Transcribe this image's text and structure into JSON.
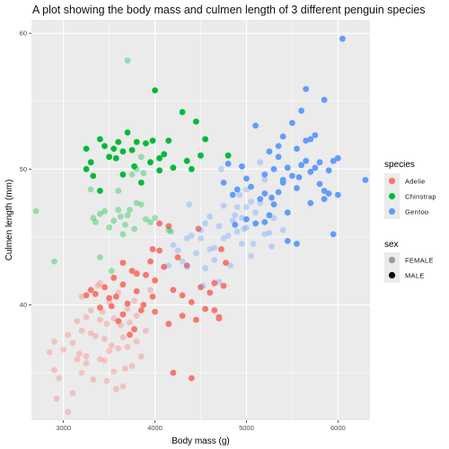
{
  "chart_data": {
    "type": "scatter",
    "title": "A plot showing the body mass and culmen length of 3 different penguin species",
    "xlabel": "Body mass (g)",
    "ylabel": "Culmen length (mm)",
    "xlim": [
      2650,
      6350
    ],
    "ylim": [
      31.5,
      61.0
    ],
    "xticks": [
      3000,
      4000,
      5000,
      6000
    ],
    "yticks": [
      40,
      50,
      60
    ],
    "grid": true,
    "legend_placement": "right",
    "legends": {
      "species": {
        "title": "species",
        "items": [
          {
            "label": "Adelie",
            "color": "#F8766D"
          },
          {
            "label": "Chinstrap",
            "color": "#00BA38"
          },
          {
            "label": "Gentoo",
            "color": "#619CFF"
          }
        ]
      },
      "sex": {
        "title": "sex",
        "items": [
          {
            "label": "FEMALE",
            "alpha": 0.35
          },
          {
            "label": "MALE",
            "alpha": 1.0
          }
        ]
      }
    },
    "series": [
      {
        "species": "Adelie",
        "sex": "FEMALE",
        "points": [
          [
            2850,
            36.5
          ],
          [
            2900,
            37.3
          ],
          [
            2900,
            35.2
          ],
          [
            2925,
            33.1
          ],
          [
            2950,
            34.6
          ],
          [
            3000,
            36.7
          ],
          [
            3050,
            37.8
          ],
          [
            3050,
            32.1
          ],
          [
            3100,
            37.2
          ],
          [
            3150,
            38.8
          ],
          [
            3175,
            36.4
          ],
          [
            3200,
            40.6
          ],
          [
            3200,
            38.1
          ],
          [
            3250,
            35.7
          ],
          [
            3250,
            36.2
          ],
          [
            3300,
            39.6
          ],
          [
            3300,
            37.9
          ],
          [
            3325,
            34.5
          ],
          [
            3350,
            37.7
          ],
          [
            3400,
            38.9
          ],
          [
            3400,
            36.0
          ],
          [
            3425,
            39.5
          ],
          [
            3450,
            35.9
          ],
          [
            3450,
            37.5
          ],
          [
            3475,
            38.6
          ],
          [
            3500,
            40.2
          ],
          [
            3500,
            36.6
          ],
          [
            3525,
            37.0
          ],
          [
            3550,
            35.1
          ],
          [
            3550,
            39.0
          ],
          [
            3600,
            36.8
          ],
          [
            3600,
            40.9
          ],
          [
            3625,
            38.5
          ],
          [
            3650,
            37.6
          ],
          [
            3650,
            34.0
          ],
          [
            3700,
            39.7
          ],
          [
            3700,
            36.9
          ],
          [
            3725,
            38.7
          ],
          [
            3750,
            35.5
          ],
          [
            3775,
            40.3
          ],
          [
            3800,
            37.3
          ],
          [
            3800,
            39.2
          ],
          [
            3850,
            36.2
          ],
          [
            3900,
            38.1
          ],
          [
            3950,
            41.1
          ],
          [
            3100,
            33.5
          ],
          [
            3200,
            35.0
          ],
          [
            3375,
            41.4
          ],
          [
            3575,
            33.8
          ],
          [
            3675,
            35.3
          ],
          [
            3400,
            41.6
          ],
          [
            3250,
            39.1
          ],
          [
            3150,
            36.0
          ],
          [
            3475,
            34.4
          ]
        ]
      },
      {
        "species": "Adelie",
        "sex": "MALE",
        "points": [
          [
            3250,
            40.7
          ],
          [
            3300,
            41.1
          ],
          [
            3350,
            40.8
          ],
          [
            3400,
            39.8
          ],
          [
            3450,
            41.3
          ],
          [
            3500,
            40.5
          ],
          [
            3525,
            39.9
          ],
          [
            3550,
            42.0
          ],
          [
            3600,
            38.8
          ],
          [
            3650,
            39.3
          ],
          [
            3650,
            41.5
          ],
          [
            3700,
            40.1
          ],
          [
            3750,
            42.5
          ],
          [
            3775,
            38.2
          ],
          [
            3800,
            41.0
          ],
          [
            3850,
            39.6
          ],
          [
            3900,
            42.2
          ],
          [
            3950,
            43.2
          ],
          [
            3975,
            40.6
          ],
          [
            4000,
            41.8
          ],
          [
            4000,
            39.5
          ],
          [
            4050,
            44.0
          ],
          [
            4100,
            42.8
          ],
          [
            4150,
            38.6
          ],
          [
            4200,
            41.1
          ],
          [
            4250,
            43.5
          ],
          [
            4300,
            40.7
          ],
          [
            4300,
            39.2
          ],
          [
            4350,
            42.9
          ],
          [
            4400,
            40.2
          ],
          [
            4450,
            38.9
          ],
          [
            4475,
            45.6
          ],
          [
            4500,
            41.3
          ],
          [
            4550,
            39.7
          ],
          [
            4600,
            40.9
          ],
          [
            4650,
            41.6
          ],
          [
            4700,
            39.0
          ],
          [
            4725,
            44.1
          ],
          [
            4750,
            41.4
          ],
          [
            4775,
            43.1
          ],
          [
            3650,
            43.1
          ],
          [
            3800,
            42.3
          ],
          [
            3875,
            40.0
          ],
          [
            4050,
            46.0
          ],
          [
            4150,
            45.8
          ],
          [
            4200,
            35.0
          ],
          [
            4400,
            34.6
          ],
          [
            4650,
            39.6
          ],
          [
            4700,
            39.1
          ],
          [
            3975,
            44.1
          ],
          [
            3725,
            37.8
          ],
          [
            3575,
            40.6
          ]
        ]
      },
      {
        "species": "Chinstrap",
        "sex": "FEMALE",
        "points": [
          [
            2700,
            46.9
          ],
          [
            2900,
            43.2
          ],
          [
            3325,
            46.4
          ],
          [
            3350,
            46.1
          ],
          [
            3400,
            46.7
          ],
          [
            3400,
            43.5
          ],
          [
            3450,
            46.9
          ],
          [
            3500,
            45.7
          ],
          [
            3525,
            42.5
          ],
          [
            3550,
            46.2
          ],
          [
            3600,
            47.0
          ],
          [
            3625,
            46.5
          ],
          [
            3650,
            45.2
          ],
          [
            3675,
            45.9
          ],
          [
            3700,
            46.6
          ],
          [
            3700,
            58.0
          ],
          [
            3725,
            47.0
          ],
          [
            3750,
            49.6
          ],
          [
            3775,
            45.6
          ],
          [
            3800,
            47.5
          ],
          [
            3850,
            47.4
          ],
          [
            3875,
            49.7
          ],
          [
            3900,
            46.3
          ],
          [
            3950,
            46.1
          ],
          [
            4000,
            46.4
          ],
          [
            4150,
            45.5
          ],
          [
            4175,
            45.4
          ],
          [
            3600,
            48.4
          ],
          [
            3300,
            48.5
          ],
          [
            3800,
            50.0
          ],
          [
            3850,
            50.9
          ]
        ]
      },
      {
        "species": "Chinstrap",
        "sex": "MALE",
        "points": [
          [
            3250,
            50.0
          ],
          [
            3250,
            51.5
          ],
          [
            3300,
            50.5
          ],
          [
            3325,
            49.5
          ],
          [
            3400,
            52.2
          ],
          [
            3450,
            51.7
          ],
          [
            3500,
            50.9
          ],
          [
            3550,
            51.5
          ],
          [
            3575,
            50.8
          ],
          [
            3600,
            52.0
          ],
          [
            3650,
            51.3
          ],
          [
            3650,
            49.6
          ],
          [
            3700,
            52.7
          ],
          [
            3750,
            51.4
          ],
          [
            3775,
            50.2
          ],
          [
            3800,
            52.0
          ],
          [
            3850,
            49.0
          ],
          [
            3900,
            51.9
          ],
          [
            3950,
            50.5
          ],
          [
            3975,
            52.1
          ],
          [
            4000,
            55.8
          ],
          [
            4050,
            50.8
          ],
          [
            4100,
            51.1
          ],
          [
            4150,
            52.1
          ],
          [
            4200,
            50.1
          ],
          [
            4300,
            54.2
          ],
          [
            4350,
            50.6
          ],
          [
            4400,
            50.0
          ],
          [
            4450,
            53.5
          ],
          [
            4500,
            51.0
          ],
          [
            4550,
            52.2
          ],
          [
            4800,
            51.0
          ],
          [
            3400,
            48.4
          ],
          [
            4050,
            49.9
          ]
        ]
      },
      {
        "species": "Gentoo",
        "sex": "FEMALE",
        "points": [
          [
            4150,
            42.9
          ],
          [
            4200,
            44.4
          ],
          [
            4250,
            44.0
          ],
          [
            4300,
            43.2
          ],
          [
            4350,
            42.8
          ],
          [
            4400,
            45.1
          ],
          [
            4450,
            43.8
          ],
          [
            4500,
            45.5
          ],
          [
            4500,
            44.9
          ],
          [
            4550,
            42.7
          ],
          [
            4600,
            44.1
          ],
          [
            4600,
            46.5
          ],
          [
            4650,
            43.3
          ],
          [
            4700,
            45.8
          ],
          [
            4750,
            44.9
          ],
          [
            4750,
            47.3
          ],
          [
            4800,
            45.1
          ],
          [
            4825,
            42.9
          ],
          [
            4850,
            46.2
          ],
          [
            4875,
            46.6
          ],
          [
            4900,
            45.4
          ],
          [
            4900,
            47.2
          ],
          [
            4950,
            46.4
          ],
          [
            4950,
            44.5
          ],
          [
            5000,
            45.7
          ],
          [
            5000,
            48.5
          ],
          [
            5050,
            47.6
          ],
          [
            5050,
            43.6
          ],
          [
            5100,
            46.8
          ],
          [
            5150,
            47.5
          ],
          [
            5200,
            45.2
          ],
          [
            5200,
            49.2
          ],
          [
            5250,
            45.3
          ],
          [
            5300,
            46.4
          ],
          [
            5400,
            45.5
          ],
          [
            5150,
            50.5
          ],
          [
            5000,
            47.2
          ],
          [
            4725,
            50.0
          ],
          [
            4550,
            46.0
          ],
          [
            4700,
            41.7
          ],
          [
            4350,
            44.9
          ],
          [
            4925,
            48.1
          ],
          [
            5075,
            44.5
          ],
          [
            5275,
            44.3
          ],
          [
            4375,
            47.4
          ],
          [
            4650,
            44.2
          ],
          [
            4975,
            45.6
          ],
          [
            4525,
            41.4
          ]
        ]
      },
      {
        "species": "Gentoo",
        "sex": "MALE",
        "points": [
          [
            4750,
            49.0
          ],
          [
            4800,
            50.4
          ],
          [
            4850,
            48.1
          ],
          [
            4875,
            45.9
          ],
          [
            4900,
            48.5
          ],
          [
            4950,
            50.2
          ],
          [
            5000,
            49.3
          ],
          [
            5000,
            46.3
          ],
          [
            5050,
            48.7
          ],
          [
            5100,
            46.0
          ],
          [
            5150,
            47.8
          ],
          [
            5200,
            49.6
          ],
          [
            5200,
            48.2
          ],
          [
            5250,
            51.3
          ],
          [
            5250,
            46.6
          ],
          [
            5300,
            50.0
          ],
          [
            5300,
            47.4
          ],
          [
            5350,
            50.9
          ],
          [
            5350,
            51.7
          ],
          [
            5400,
            49.2
          ],
          [
            5400,
            52.4
          ],
          [
            5450,
            50.1
          ],
          [
            5450,
            46.8
          ],
          [
            5500,
            53.4
          ],
          [
            5500,
            49.5
          ],
          [
            5550,
            51.5
          ],
          [
            5550,
            48.6
          ],
          [
            5600,
            50.3
          ],
          [
            5600,
            54.3
          ],
          [
            5650,
            52.1
          ],
          [
            5650,
            55.9
          ],
          [
            5700,
            49.8
          ],
          [
            5700,
            47.5
          ],
          [
            5750,
            50.1
          ],
          [
            5750,
            52.5
          ],
          [
            5800,
            48.9
          ],
          [
            5800,
            50.5
          ],
          [
            5850,
            48.4
          ],
          [
            5850,
            55.1
          ],
          [
            5900,
            49.9
          ],
          [
            5950,
            50.6
          ],
          [
            5950,
            45.2
          ],
          [
            6000,
            50.8
          ],
          [
            6000,
            48.1
          ],
          [
            6050,
            59.6
          ],
          [
            6300,
            49.2
          ],
          [
            5550,
            44.5
          ],
          [
            5100,
            53.2
          ],
          [
            5400,
            49.0
          ],
          [
            5650,
            50.6
          ],
          [
            5200,
            46.1
          ],
          [
            5350,
            48.3
          ],
          [
            5450,
            44.7
          ],
          [
            5700,
            52.2
          ],
          [
            5850,
            47.8
          ],
          [
            5900,
            48.2
          ],
          [
            5275,
            47.9
          ],
          [
            5575,
            49.4
          ]
        ]
      }
    ]
  }
}
